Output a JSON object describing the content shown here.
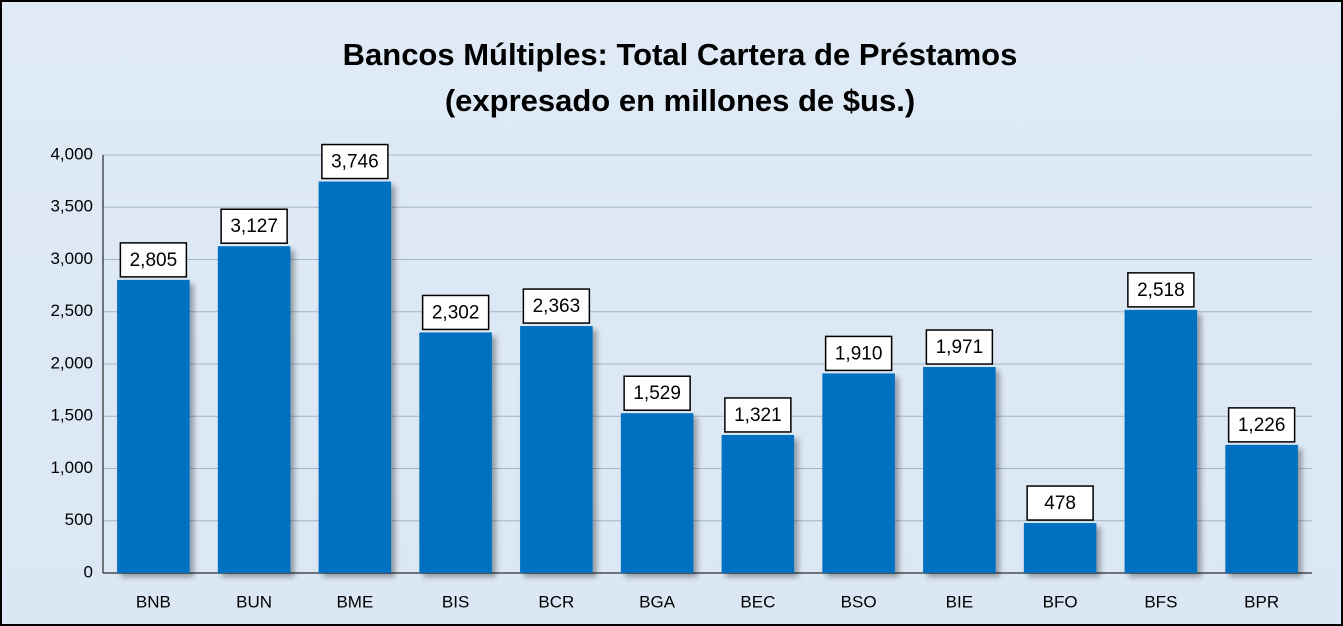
{
  "chart_data": {
    "type": "bar",
    "title": "Bancos Múltiples: Total Cartera de Préstamos",
    "subtitle": "(expresado en millones de $us.)",
    "categories": [
      "BNB",
      "BUN",
      "BME",
      "BIS",
      "BCR",
      "BGA",
      "BEC",
      "BSO",
      "BIE",
      "BFO",
      "BFS",
      "BPR"
    ],
    "values": [
      2805,
      3127,
      3746,
      2302,
      2363,
      1529,
      1321,
      1910,
      1971,
      478,
      2518,
      1226
    ],
    "value_labels": [
      "2,805",
      "3,127",
      "3,746",
      "2,302",
      "2,363",
      "1,529",
      "1,321",
      "1,910",
      "1,971",
      "478",
      "2,518",
      "1,226"
    ],
    "color": "#0070c0",
    "ylim": [
      0,
      4000
    ],
    "yticks": [
      0,
      500,
      {
        "value": 1000,
        "label": "1,000"
      },
      {
        "value": 1500,
        "label": "1,500"
      },
      {
        "value": 2000,
        "label": "2,000"
      },
      {
        "value": 2500,
        "label": "2,500"
      },
      {
        "value": 3000,
        "label": "3,000"
      },
      {
        "value": 3500,
        "label": "3,500"
      },
      {
        "value": 4000,
        "label": "4,000"
      }
    ],
    "grid": true
  }
}
